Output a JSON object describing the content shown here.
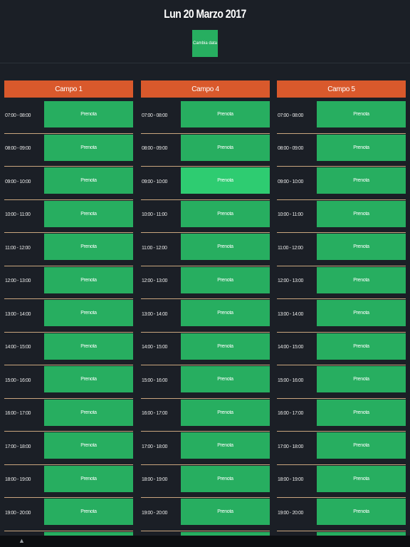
{
  "header": {
    "date_title": "Lun 20 Marzo 2017",
    "change_date_label": "Cambia data"
  },
  "book_label": "Prenota",
  "columns": [
    {
      "name": "Campo 1"
    },
    {
      "name": "Campo 4"
    },
    {
      "name": "Campo 5"
    }
  ],
  "time_slots": [
    "07:00 - 08:00",
    "08:00 - 09:00",
    "09:00 - 10:00",
    "10:00 - 11:00",
    "11:00 - 12:00",
    "12:00 - 13:00",
    "13:00 - 14:00",
    "14:00 - 15:00",
    "15:00 - 16:00",
    "16:00 - 17:00",
    "17:00 - 18:00",
    "18:00 - 19:00",
    "19:00 - 20:00",
    ""
  ],
  "highlighted": {
    "column": 1,
    "slot": 2
  },
  "colors": {
    "background": "#1b1f26",
    "book_button": "#27ae60",
    "book_button_highlight": "#2ecc71",
    "column_header": "#d9592c",
    "slot_divider": "#c9a57e"
  }
}
